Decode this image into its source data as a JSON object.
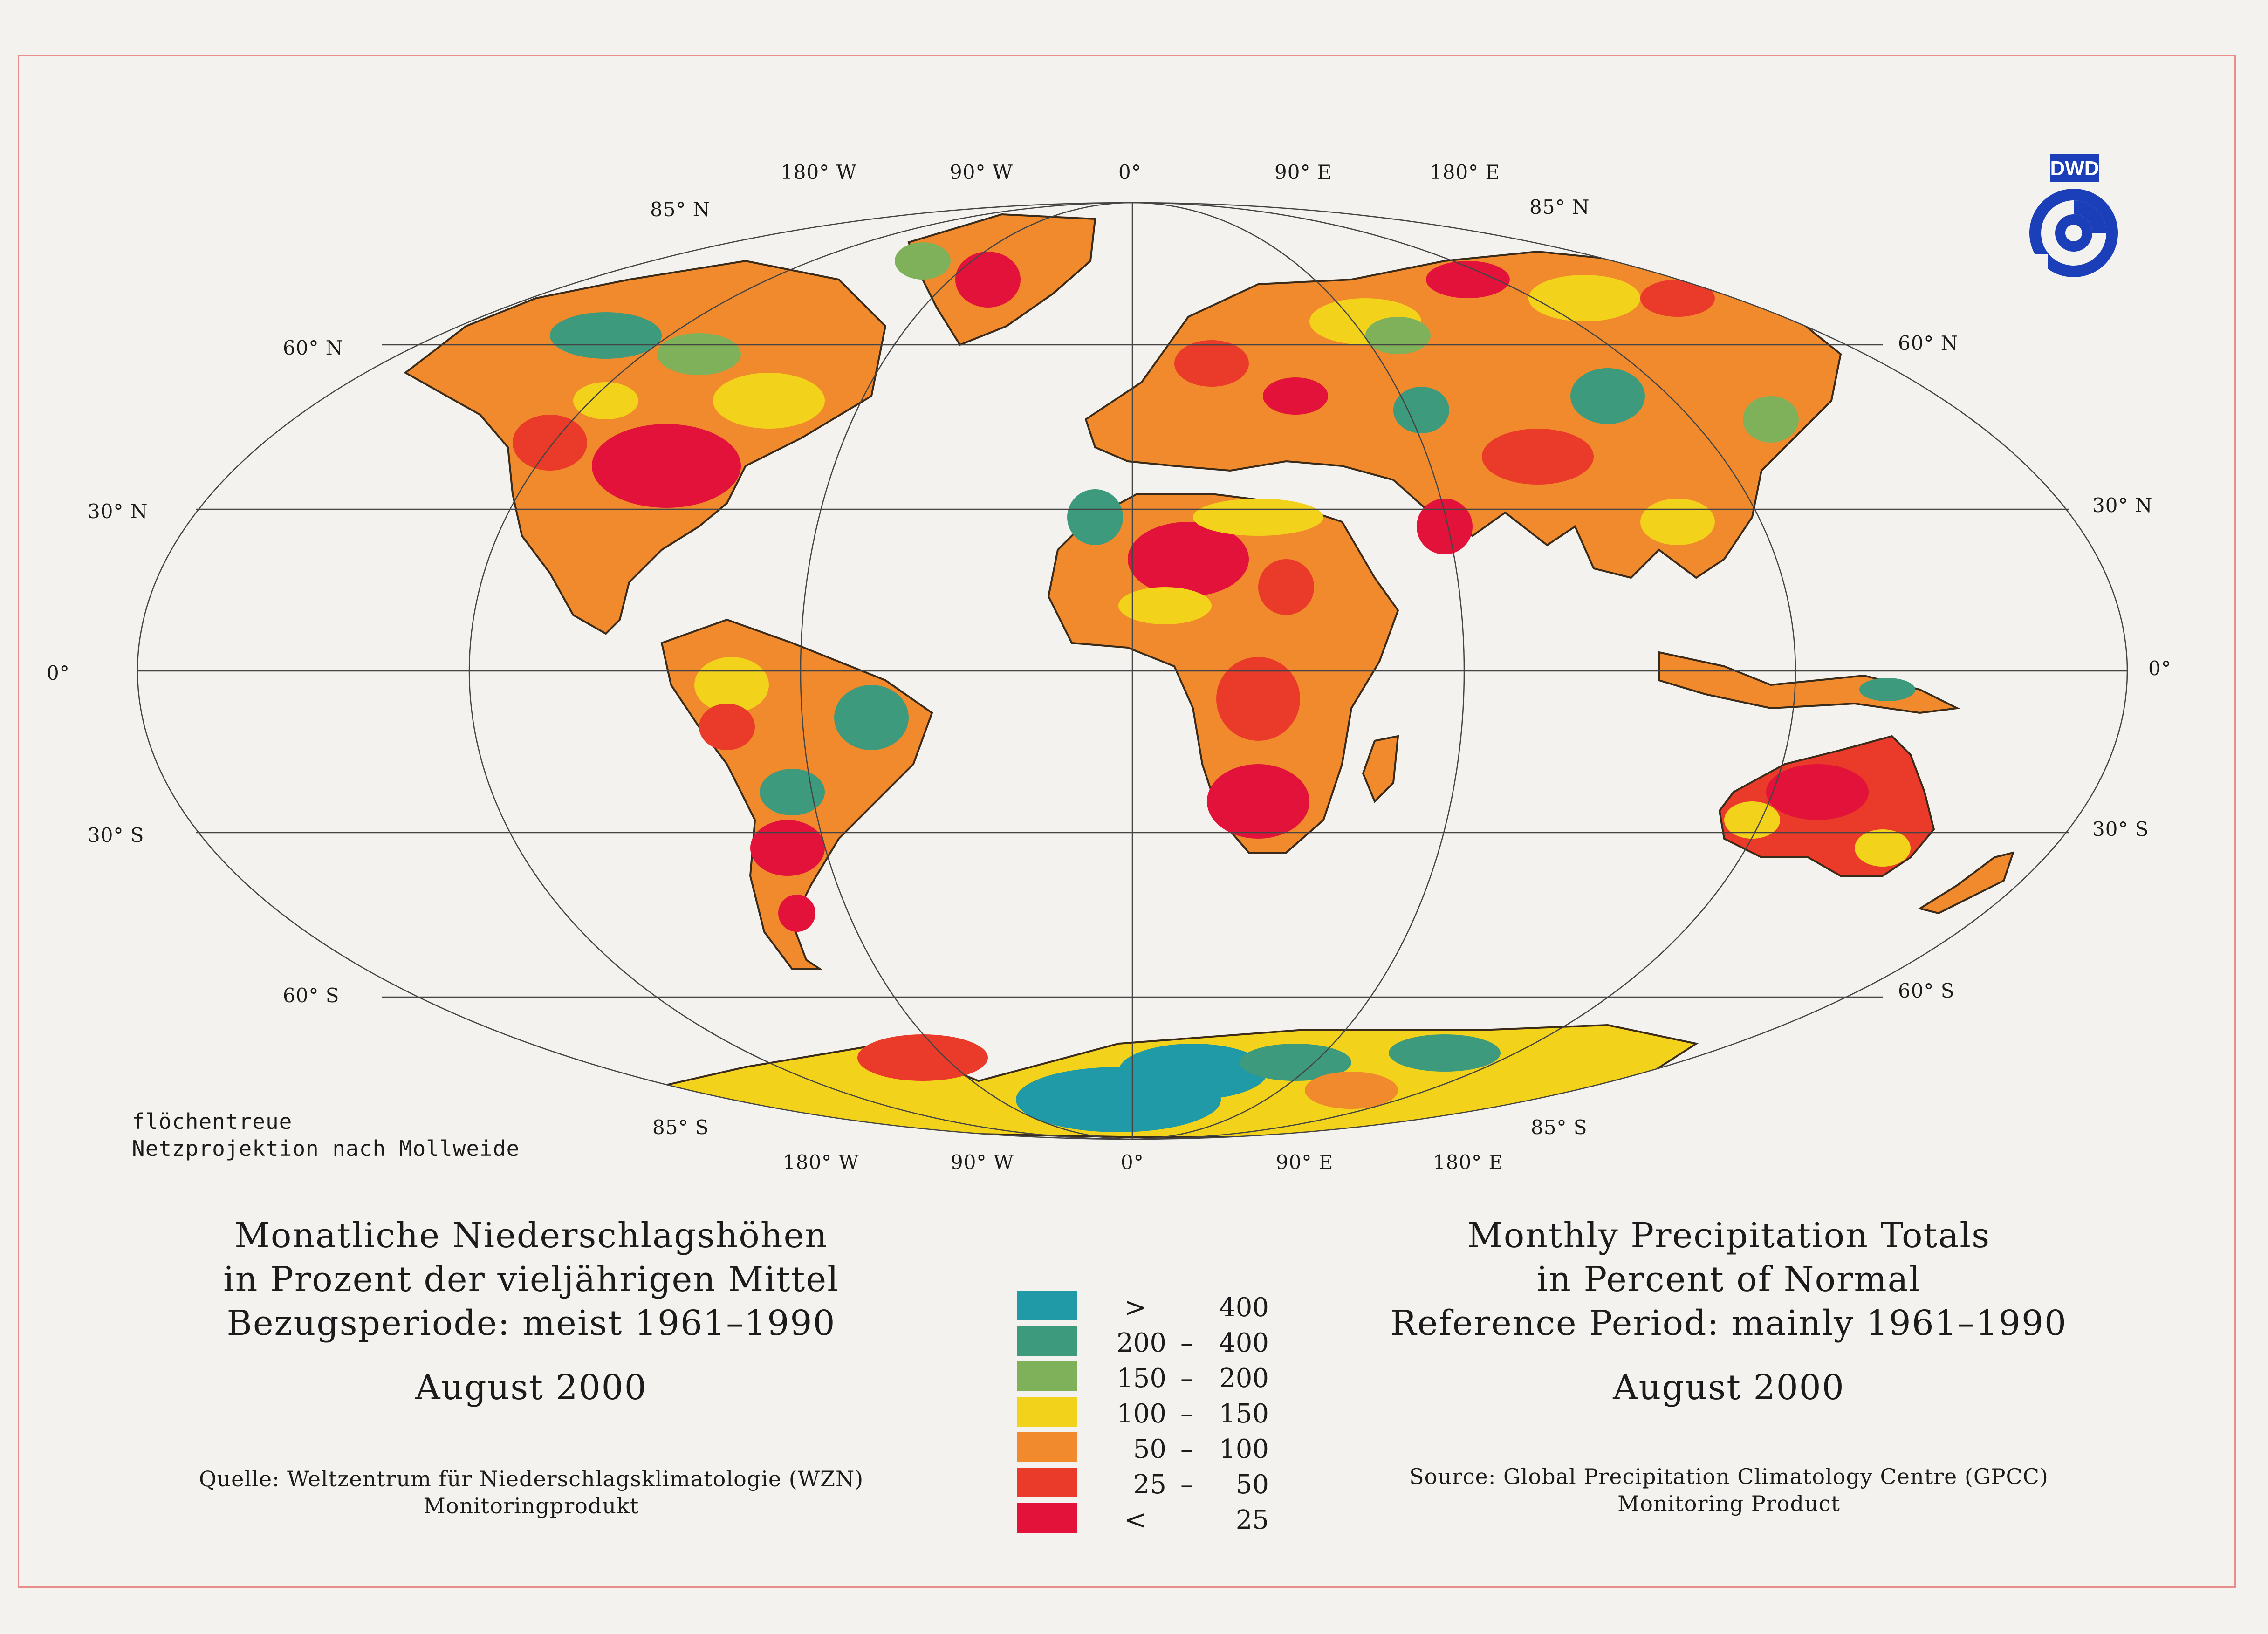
{
  "map": {
    "lat_labels": {
      "n85": "85° N",
      "n60": "60° N",
      "n30": "30° N",
      "eq": "0°",
      "s30": "30° S",
      "s60": "60° S",
      "s85": "85° S"
    },
    "lon_labels": [
      "180° W",
      "90° W",
      "0°",
      "90° E",
      "180° E"
    ],
    "projection": [
      "flöchentreue",
      "Netzprojektion nach Mollweide"
    ],
    "colors": {
      "gt400": "#1f9aa6",
      "200_400": "#3d9a7c",
      "150_200": "#7fb15a",
      "100_150": "#f2d21a",
      "50_100": "#f08a2c",
      "25_50": "#e93a2a",
      "lt25": "#e2123a"
    }
  },
  "titles": {
    "de": {
      "lines": [
        "Monatliche Niederschlagshöhen",
        "in Prozent der vieljährigen Mittel",
        "Bezugsperiode: meist 1961–1990"
      ],
      "month": "August 2000",
      "source": [
        "Quelle: Weltzentrum für Niederschlagsklimatologie (WZN)",
        "Monitoringprodukt"
      ]
    },
    "en": {
      "lines": [
        "Monthly Precipitation Totals",
        "in Percent of Normal",
        "Reference Period: mainly 1961–1990"
      ],
      "month": "August 2000",
      "source": [
        "Source: Global Precipitation Climatology Centre (GPCC)",
        "Monitoring Product"
      ]
    }
  },
  "legend": [
    {
      "sym": ">",
      "a": "",
      "dash": "",
      "b": "400",
      "color": "#1f9aa6"
    },
    {
      "sym": "",
      "a": "200",
      "dash": "–",
      "b": "400",
      "color": "#3d9a7c"
    },
    {
      "sym": "",
      "a": "150",
      "dash": "–",
      "b": "200",
      "color": "#7fb15a"
    },
    {
      "sym": "",
      "a": "100",
      "dash": "–",
      "b": "150",
      "color": "#f2d21a"
    },
    {
      "sym": "",
      "a": "50",
      "dash": "–",
      "b": "100",
      "color": "#f08a2c"
    },
    {
      "sym": "",
      "a": "25",
      "dash": "–",
      "b": "50",
      "color": "#e93a2a"
    },
    {
      "sym": "<",
      "a": "",
      "dash": "",
      "b": "25",
      "color": "#e2123a"
    }
  ],
  "logo": {
    "text": "DWD",
    "color": "#1a3fb8"
  }
}
